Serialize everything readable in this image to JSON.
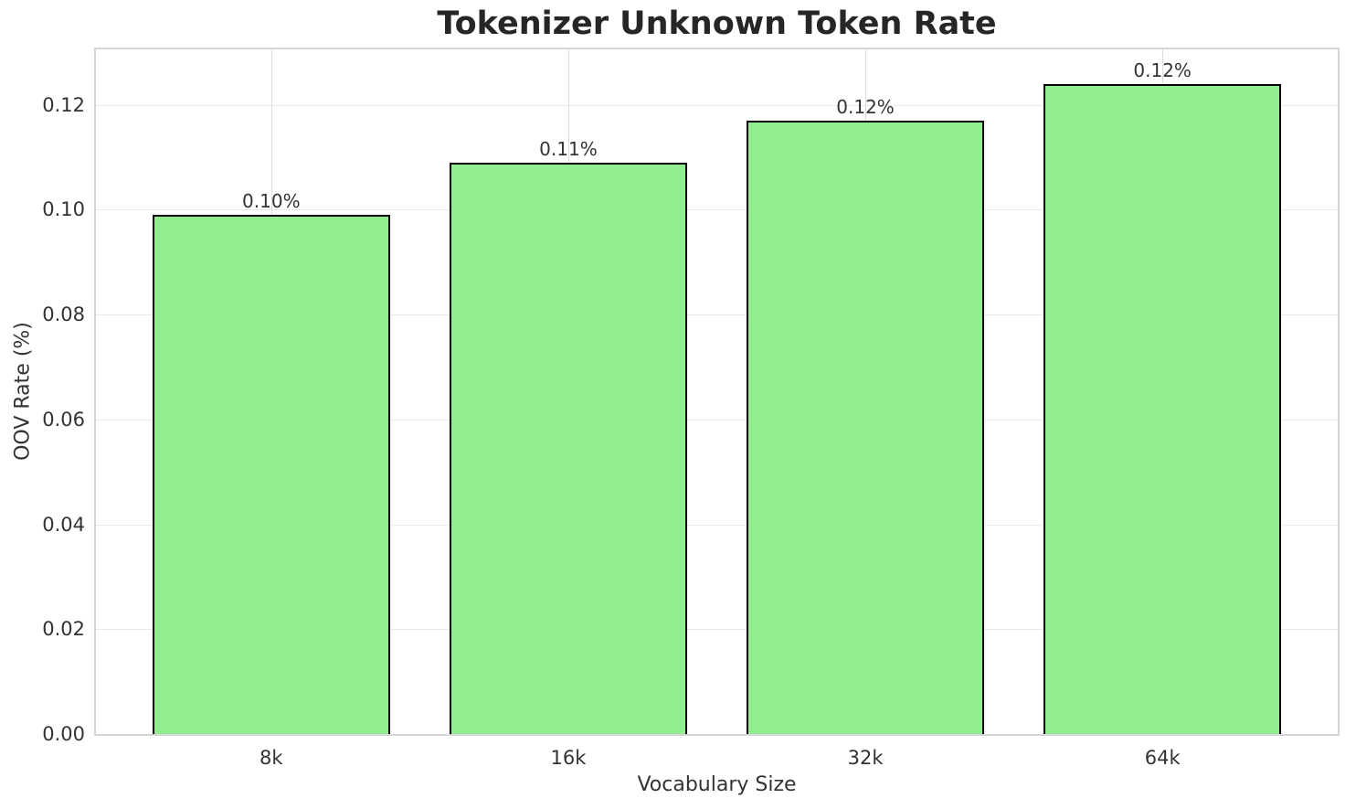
{
  "chart_data": {
    "type": "bar",
    "title": "Tokenizer Unknown Token Rate",
    "xlabel": "Vocabulary Size",
    "ylabel": "OOV Rate (%)",
    "categories": [
      "8k",
      "16k",
      "32k",
      "64k"
    ],
    "values": [
      0.099,
      0.109,
      0.117,
      0.124
    ],
    "bar_labels": [
      "0.10%",
      "0.11%",
      "0.12%",
      "0.12%"
    ],
    "yticks": [
      0.0,
      0.02,
      0.04,
      0.06,
      0.08,
      0.1,
      0.12
    ],
    "ytick_labels": [
      "0.00",
      "0.02",
      "0.04",
      "0.06",
      "0.08",
      "0.10",
      "0.12"
    ],
    "ylim": [
      0,
      0.1306
    ],
    "xlim": [
      -0.59,
      3.59
    ],
    "bar_width": 0.8,
    "grid": true,
    "legend": "none",
    "colors": {
      "bar_fill": "#90EE90",
      "bar_edge": "#000000",
      "grid_h": "#e9e9e9",
      "grid_v": "#dcdcdc",
      "spine": "#d6d6d6",
      "text": "#333333",
      "title": "#262626",
      "background": "#ffffff"
    }
  }
}
